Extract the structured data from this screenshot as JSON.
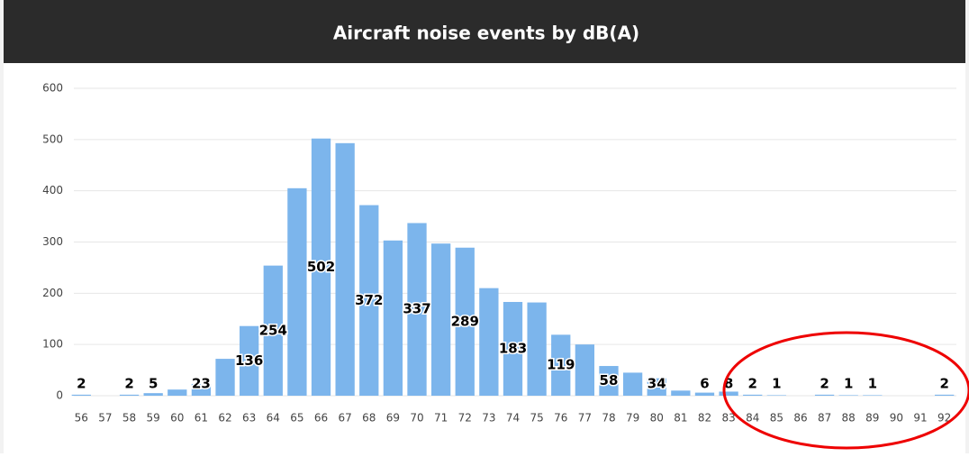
{
  "chart_data": {
    "type": "bar",
    "title": "Aircraft noise events by dB(A)",
    "categories": [
      "56",
      "57",
      "58",
      "59",
      "60",
      "61",
      "62",
      "63",
      "64",
      "65",
      "66",
      "67",
      "68",
      "69",
      "70",
      "71",
      "72",
      "73",
      "74",
      "75",
      "76",
      "77",
      "78",
      "79",
      "80",
      "81",
      "82",
      "83",
      "84",
      "85",
      "86",
      "87",
      "88",
      "89",
      "90",
      "91",
      "92"
    ],
    "values": [
      2,
      0,
      2,
      5,
      12,
      23,
      72,
      136,
      254,
      405,
      502,
      493,
      372,
      303,
      337,
      297,
      289,
      210,
      183,
      182,
      119,
      100,
      58,
      45,
      34,
      10,
      6,
      8,
      2,
      1,
      0,
      2,
      1,
      1,
      0,
      0,
      2
    ],
    "value_labels": [
      "2",
      null,
      "2",
      "5",
      null,
      "23",
      null,
      "136",
      "254",
      null,
      "502",
      null,
      "372",
      null,
      "337",
      null,
      "289",
      null,
      "183",
      null,
      "119",
      null,
      "58",
      null,
      "34",
      null,
      "6",
      "8",
      "2",
      "1",
      null,
      "2",
      "1",
      "1",
      null,
      null,
      "2"
    ],
    "color": "#7cb5ec",
    "ylim": [
      0,
      600
    ],
    "yticks": [
      0,
      100,
      200,
      300,
      400,
      500,
      600
    ],
    "grid": true
  }
}
